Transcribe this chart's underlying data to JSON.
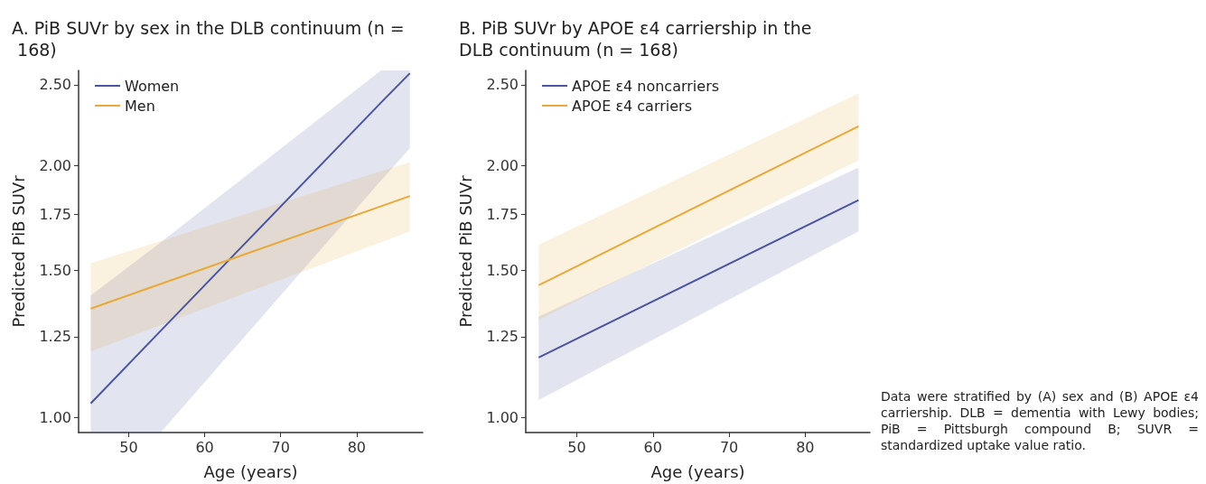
{
  "chart_data": [
    {
      "type": "line",
      "title": "A. PiB SUVr by sex in the DLB continuum (n = 168)",
      "xlabel": "Age (years)",
      "ylabel": "Predicted PiB SUVr",
      "log": "y",
      "xlim": [
        43.4,
        88.7
      ],
      "xticks": [
        50,
        60,
        70,
        80
      ],
      "ylim": [
        0.96,
        2.6
      ],
      "yticks": [
        {
          "value": 1,
          "label": "1.00"
        },
        {
          "value": 1.25,
          "label": "1.25"
        },
        {
          "value": 1.5,
          "label": "1.50"
        },
        {
          "value": 1.75,
          "label": "1.75"
        },
        {
          "value": 2,
          "label": "2.00"
        },
        {
          "value": 2.5,
          "label": "2.50"
        }
      ],
      "grid": false,
      "legend": "top left",
      "marker": "none",
      "line_style": "solid",
      "series": [
        {
          "name": "Women",
          "color": "#4a54a0",
          "x": [
            45,
            54.2,
            83.2,
            87
          ],
          "values": [
            1.04,
            1.27,
            2.38,
            2.58
          ],
          "lower": [
            0.96,
            0.96,
            1.92,
            2.1
          ],
          "upper": [
            1.4,
            1.62,
            2.6,
            2.6
          ]
        },
        {
          "name": "Men",
          "color": "#e8a93a",
          "x": [
            45,
            87
          ],
          "values": [
            1.35,
            1.84
          ],
          "lower": [
            1.2,
            1.67
          ],
          "upper": [
            1.53,
            2.02
          ]
        }
      ]
    },
    {
      "type": "line",
      "title": "B. PiB SUVr by APOE ε4 carriership in the DLB continuum (n = 168)",
      "xlabel": "Age (years)",
      "ylabel": "Predicted PiB SUVr",
      "log": "y",
      "xlim": [
        43.3,
        88.5
      ],
      "xticks": [
        50,
        60,
        70,
        80
      ],
      "ylim": [
        0.96,
        2.6
      ],
      "yticks": [
        {
          "value": 1,
          "label": "1.00"
        },
        {
          "value": 1.25,
          "label": "1.25"
        },
        {
          "value": 1.5,
          "label": "1.50"
        },
        {
          "value": 1.75,
          "label": "1.75"
        },
        {
          "value": 2,
          "label": "2.00"
        },
        {
          "value": 2.5,
          "label": "2.50"
        }
      ],
      "grid": false,
      "legend": "top left",
      "marker": "none",
      "line_style": "solid",
      "series": [
        {
          "name": "APOE ε4 noncarriers",
          "color": "#4a54a0",
          "x": [
            45,
            87
          ],
          "values": [
            1.18,
            1.82
          ],
          "lower": [
            1.05,
            1.67
          ],
          "upper": [
            1.32,
            1.99
          ]
        },
        {
          "name": "APOE ε4 carriers",
          "color": "#e8a93a",
          "x": [
            45,
            87
          ],
          "values": [
            1.44,
            2.23
          ],
          "lower": [
            1.31,
            2.03
          ],
          "upper": [
            1.61,
            2.44
          ]
        }
      ],
      "annotations": [
        "Data were stratified by (A) sex and (B) APOE ε4 carriership. DLB = dementia with Lewy bodies; PiB = Pittsburgh compound B; SUVR = standardized uptake value ratio."
      ]
    }
  ]
}
